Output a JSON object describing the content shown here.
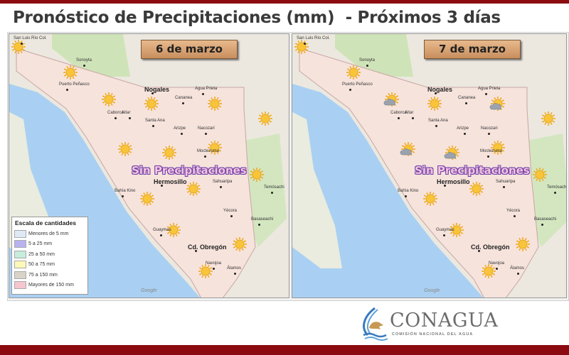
{
  "title": "Pronóstico de Precipitaciones (mm)  - Próximos 3 días",
  "maps": [
    {
      "date": "6 de marzo",
      "status": "Sin Precipitaciones",
      "weather": [
        "sunny",
        "sunny",
        "sunny",
        "sunny",
        "sunny",
        "sunny",
        "sunny",
        "sunny",
        "sunny",
        "sunny",
        "sunny",
        "sunny",
        "sunny",
        "sunny",
        "sunny"
      ]
    },
    {
      "date": "7 de marzo",
      "status": "Sin Precipitaciones",
      "weather": [
        "sunny",
        "sunny",
        "partly-cloudy",
        "sunny",
        "partly-cloudy",
        "sunny",
        "partly-cloudy",
        "partly-cloudy",
        "sunny",
        "sunny",
        "sunny",
        "sunny",
        "sunny",
        "sunny",
        "sunny"
      ]
    }
  ],
  "cities": [
    "San Luis Río Col.",
    "Sonoyta",
    "Puerto Peñasco",
    "Nogales",
    "Agua Prieta",
    "Cananea",
    "Caborca",
    "Altar",
    "Santa Ana",
    "Arizpe",
    "Nacozari",
    "Moctezuma",
    "Hermosillo",
    "Bahía Kino",
    "Sahuaripa",
    "Yécora",
    "Guaymas",
    "Cd. Obregón",
    "Navojoa",
    "Álamos",
    "Basaseachi",
    "Temósachi"
  ],
  "map_credit": "Google",
  "legend": {
    "title": "Escala de cantidades",
    "items": [
      {
        "label": "Menores de 5 mm",
        "color": "#dfe9f6"
      },
      {
        "label": "5 a 25 mm",
        "color": "#b9b2f0"
      },
      {
        "label": "25 a 50 mm",
        "color": "#c6ecdc"
      },
      {
        "label": "50 a 75 mm",
        "color": "#fdf8b8"
      },
      {
        "label": "75 a 150 mm",
        "color": "#d8d2c8"
      },
      {
        "label": "Mayores de 150 mm",
        "color": "#f6c6cf"
      }
    ]
  },
  "logo": {
    "name": "CONAGUA",
    "subtitle": "COMISIÓN NACIONAL DEL AGUA"
  },
  "colors": {
    "brand": "#8b0b10",
    "sun": "#f5b51c",
    "state_fill": "#f6e3dc",
    "water": "#a9d0f2"
  }
}
